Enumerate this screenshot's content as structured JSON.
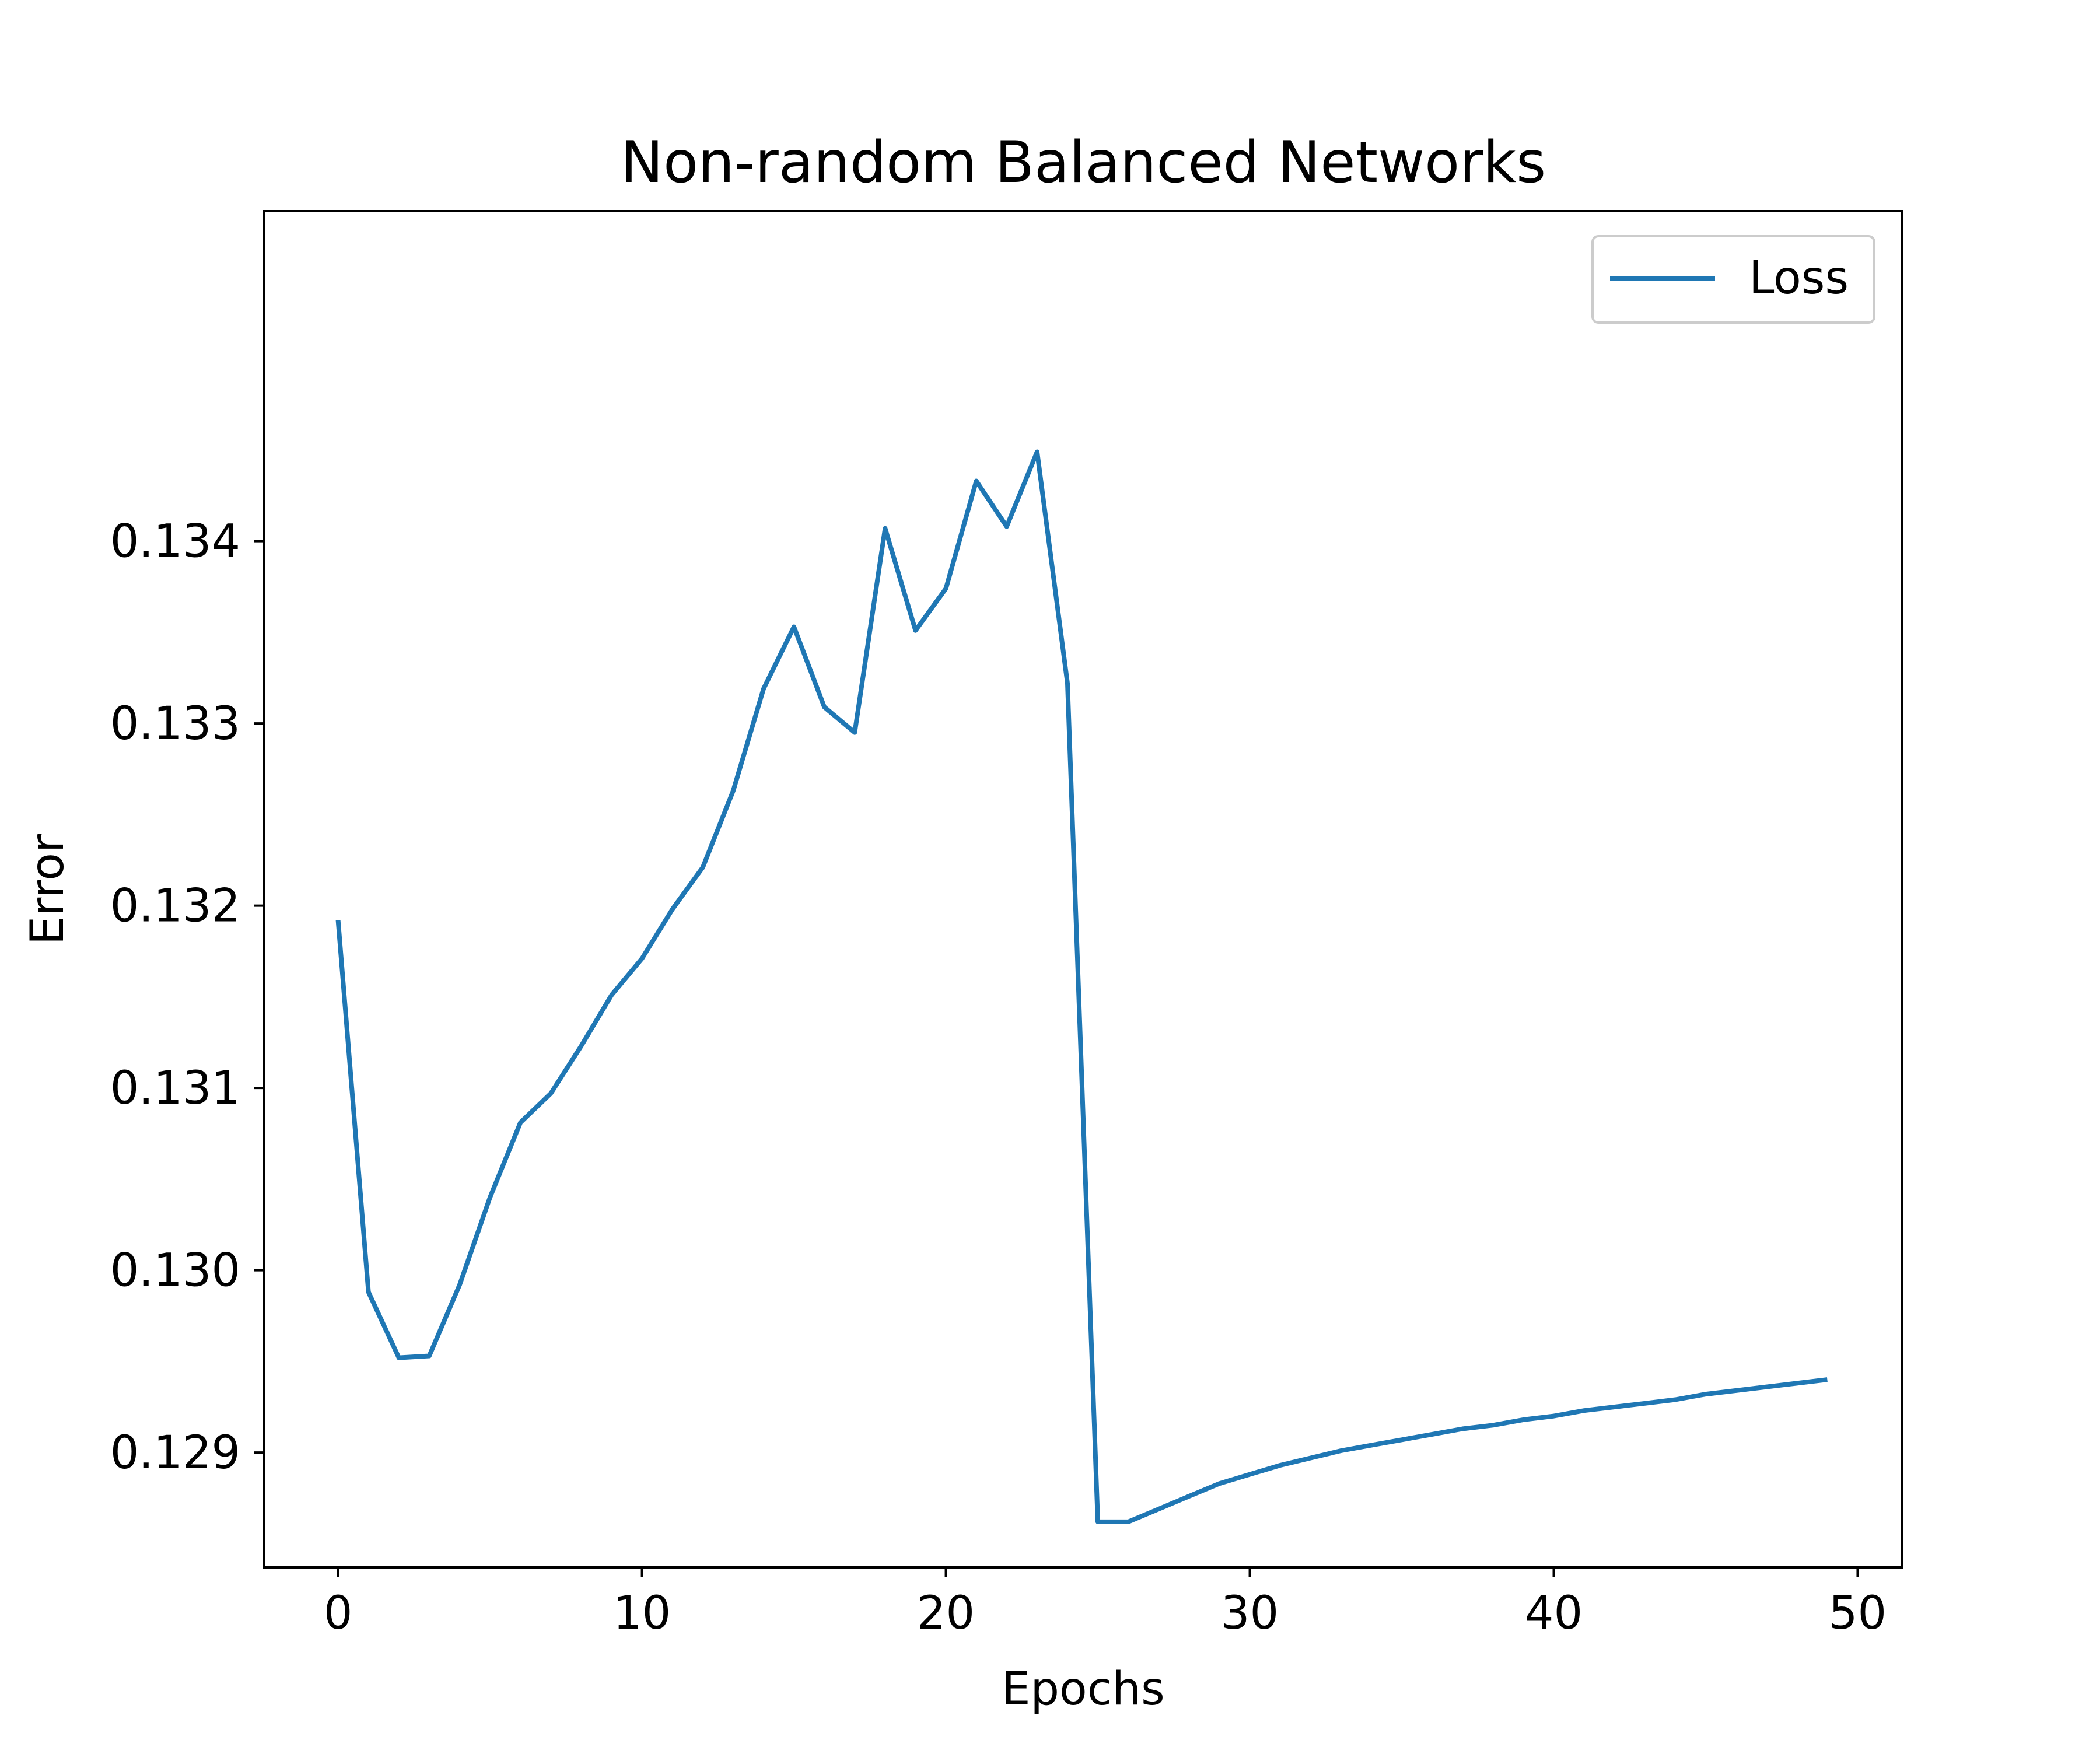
{
  "chart_data": {
    "type": "line",
    "title": "Non-random Balanced Networks",
    "xlabel": "Epochs",
    "ylabel": "Error",
    "xlim": [
      -2.45,
      51.45
    ],
    "ylim": [
      0.12837,
      0.13581
    ],
    "xticks": [
      0,
      10,
      20,
      30,
      40,
      50
    ],
    "yticks": [
      0.129,
      0.13,
      0.131,
      0.132,
      0.133,
      0.134
    ],
    "xtick_labels": [
      "0",
      "10",
      "20",
      "30",
      "40",
      "50"
    ],
    "ytick_labels": [
      "0.129",
      "0.130",
      "0.131",
      "0.132",
      "0.133",
      "0.134"
    ],
    "grid": false,
    "legend_position": "upper right",
    "series": [
      {
        "name": "Loss",
        "color": "#1f77b4",
        "x": [
          0,
          1,
          2,
          3,
          4,
          5,
          6,
          7,
          8,
          9,
          10,
          11,
          12,
          13,
          14,
          15,
          16,
          17,
          18,
          19,
          20,
          21,
          22,
          23,
          24,
          25,
          26,
          27,
          28,
          29,
          30,
          31,
          32,
          33,
          34,
          35,
          36,
          37,
          38,
          39,
          40,
          41,
          42,
          43,
          44,
          45,
          46,
          47,
          48,
          49
        ],
        "y": [
          0.13192,
          0.12988,
          0.12952,
          0.12953,
          0.12992,
          0.1304,
          0.13081,
          0.13097,
          0.13123,
          0.13151,
          0.13171,
          0.13198,
          0.13221,
          0.13263,
          0.13319,
          0.13353,
          0.13309,
          0.13295,
          0.13407,
          0.13351,
          0.13374,
          0.13433,
          0.13408,
          0.13449,
          0.13322,
          0.12862,
          0.12862,
          0.12869,
          0.12876,
          0.12883,
          0.12888,
          0.12893,
          0.12897,
          0.12901,
          0.12904,
          0.12907,
          0.1291,
          0.12913,
          0.12915,
          0.12918,
          0.1292,
          0.12923,
          0.12925,
          0.12927,
          0.12929,
          0.12932,
          0.12934,
          0.12936,
          0.12938,
          0.1294
        ]
      }
    ]
  }
}
